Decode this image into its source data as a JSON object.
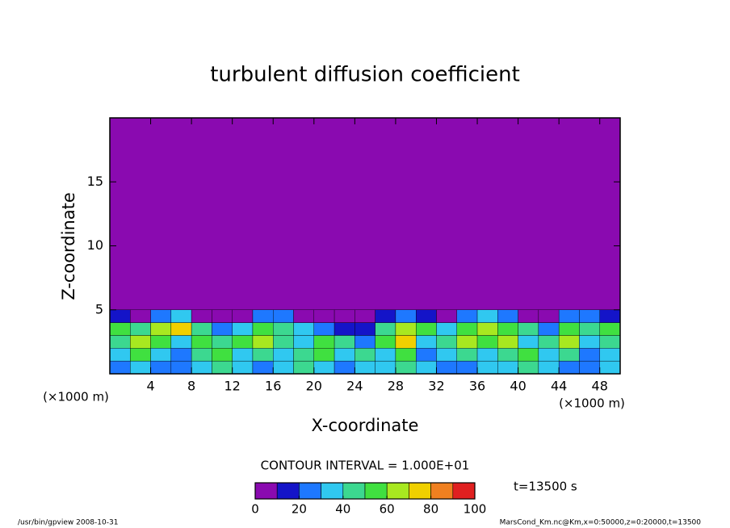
{
  "chart_data": {
    "type": "contour",
    "title": "turbulent diffusion coefficient",
    "xlabel": "X-coordinate",
    "ylabel": "Z-coordinate",
    "x_unit": "(×1000 m)",
    "y_unit": "(×1000 m)",
    "xlim": [
      0,
      50
    ],
    "ylim": [
      0,
      20
    ],
    "xticks": [
      4,
      8,
      12,
      16,
      20,
      24,
      28,
      32,
      36,
      40,
      44,
      48
    ],
    "yticks": [
      5,
      10,
      15
    ],
    "x": [
      1,
      3,
      5,
      7,
      9,
      11,
      13,
      15,
      17,
      19,
      21,
      23,
      25,
      27,
      29,
      31,
      33,
      35,
      37,
      39,
      41,
      43,
      45,
      47,
      49
    ],
    "y": [
      0.5,
      1.5,
      2.5,
      3.5,
      4.5
    ],
    "values": [
      [
        20,
        30,
        25,
        20,
        30,
        40,
        30,
        25,
        30,
        40,
        30,
        20,
        30,
        30,
        40,
        30,
        20,
        25,
        30,
        30,
        40,
        30,
        25,
        20,
        30
      ],
      [
        30,
        50,
        30,
        20,
        40,
        50,
        30,
        40,
        30,
        40,
        50,
        30,
        40,
        30,
        50,
        20,
        30,
        40,
        30,
        40,
        50,
        30,
        40,
        20,
        30
      ],
      [
        40,
        60,
        50,
        30,
        50,
        40,
        50,
        60,
        40,
        30,
        50,
        40,
        20,
        50,
        70,
        30,
        40,
        60,
        50,
        60,
        30,
        40,
        60,
        30,
        40
      ],
      [
        50,
        40,
        60,
        70,
        40,
        20,
        30,
        50,
        40,
        30,
        20,
        10,
        15,
        40,
        60,
        50,
        30,
        50,
        60,
        50,
        40,
        20,
        50,
        40,
        50
      ],
      [
        10,
        5,
        20,
        30,
        0,
        0,
        0,
        20,
        20,
        0,
        0,
        0,
        0,
        15,
        25,
        10,
        0,
        20,
        30,
        20,
        0,
        0,
        20,
        25,
        15
      ]
    ],
    "colormap": [
      "#8a0ab0",
      "#1414c8",
      "#1e78ff",
      "#30c8f0",
      "#3cd890",
      "#40e040",
      "#a8e820",
      "#f0d000",
      "#f08020",
      "#e02020"
    ],
    "clim": [
      0,
      100
    ],
    "colorbar_ticks": [
      0,
      20,
      40,
      60,
      80,
      100
    ],
    "contour_interval": "CONTOUR INTERVAL = 1.000E+01",
    "time_label": "t=13500 s",
    "footer_left": "/usr/bin/gpview   2008-10-31",
    "footer_right": "MarsCond_Km.nc@Km,x=0:50000,z=0:20000,t=13500"
  }
}
